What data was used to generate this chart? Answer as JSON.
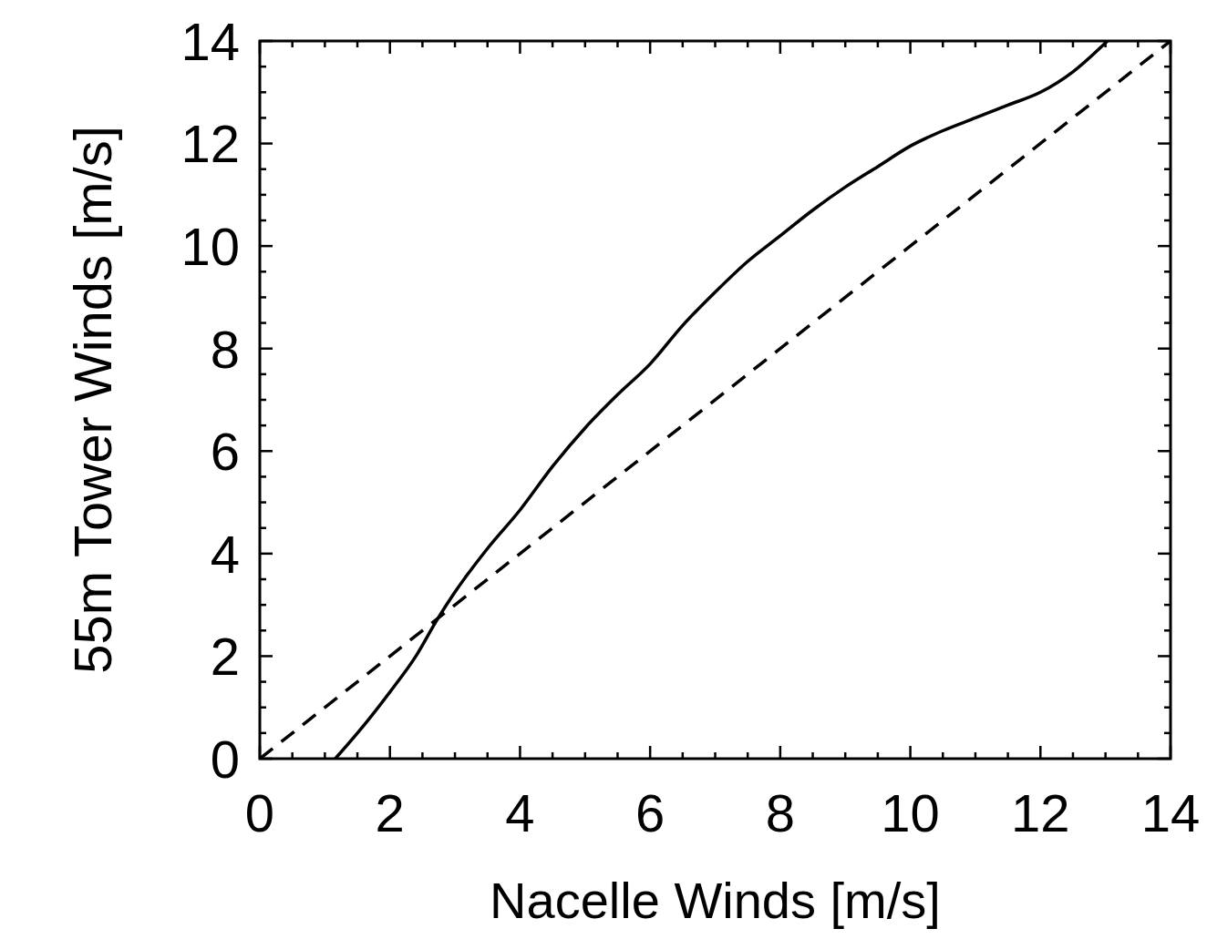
{
  "chart_data": {
    "type": "line",
    "xlabel": "Nacelle Winds [m/s]",
    "ylabel": "55m Tower Winds [m/s]",
    "xlim": [
      0,
      14
    ],
    "ylim": [
      0,
      14
    ],
    "xticks": [
      0,
      {
        "value": 0.5,
        "label": null
      },
      {
        "value": 1,
        "label": null
      },
      {
        "value": 1.5,
        "label": null
      },
      2,
      {
        "value": 2.5,
        "label": null
      },
      {
        "value": 3,
        "label": null
      },
      {
        "value": 3.5,
        "label": null
      },
      4,
      {
        "value": 4.5,
        "label": null
      },
      {
        "value": 5,
        "label": null
      },
      {
        "value": 5.5,
        "label": null
      },
      6,
      {
        "value": 6.5,
        "label": null
      },
      {
        "value": 7,
        "label": null
      },
      {
        "value": 7.5,
        "label": null
      },
      8,
      {
        "value": 8.5,
        "label": null
      },
      {
        "value": 9,
        "label": null
      },
      {
        "value": 9.5,
        "label": null
      },
      10,
      {
        "value": 10.5,
        "label": null
      },
      {
        "value": 11,
        "label": null
      },
      {
        "value": 11.5,
        "label": null
      },
      12,
      {
        "value": 12.5,
        "label": null
      },
      {
        "value": 13,
        "label": null
      },
      {
        "value": 13.5,
        "label": null
      },
      14
    ],
    "yticks": [
      0,
      {
        "value": 0.5,
        "label": null
      },
      {
        "value": 1,
        "label": null
      },
      {
        "value": 1.5,
        "label": null
      },
      2,
      {
        "value": 2.5,
        "label": null
      },
      {
        "value": 3,
        "label": null
      },
      {
        "value": 3.5,
        "label": null
      },
      4,
      {
        "value": 4.5,
        "label": null
      },
      {
        "value": 5,
        "label": null
      },
      {
        "value": 5.5,
        "label": null
      },
      6,
      {
        "value": 6.5,
        "label": null
      },
      {
        "value": 7,
        "label": null
      },
      {
        "value": 7.5,
        "label": null
      },
      8,
      {
        "value": 8.5,
        "label": null
      },
      {
        "value": 9,
        "label": null
      },
      {
        "value": 9.5,
        "label": null
      },
      10,
      {
        "value": 10.5,
        "label": null
      },
      {
        "value": 11,
        "label": null
      },
      {
        "value": 11.5,
        "label": null
      },
      12,
      {
        "value": 12.5,
        "label": null
      },
      {
        "value": 13,
        "label": null
      },
      {
        "value": 13.5,
        "label": null
      },
      14
    ],
    "grid": false,
    "marker": "none",
    "series": [
      {
        "color": "#000000",
        "line_style": "solid",
        "x": [
          1.16,
          1.6,
          2,
          2.4,
          2.73,
          3,
          3.5,
          4,
          4.5,
          5,
          5.5,
          6,
          6.5,
          7,
          7.5,
          8,
          8.5,
          9,
          9.5,
          10,
          10.5,
          11,
          11.5,
          12,
          12.5,
          13.03
        ],
        "values": [
          0,
          0.65,
          1.3,
          2.0,
          2.72,
          3.25,
          4.1,
          4.85,
          5.7,
          6.45,
          7.1,
          7.7,
          8.45,
          9.1,
          9.7,
          10.2,
          10.7,
          11.15,
          11.55,
          11.95,
          12.25,
          12.5,
          12.75,
          13.0,
          13.4,
          14
        ]
      },
      {
        "color": "#000000",
        "line_style": "dashed",
        "x": [
          0,
          14
        ],
        "values": [
          0,
          14
        ]
      }
    ]
  }
}
